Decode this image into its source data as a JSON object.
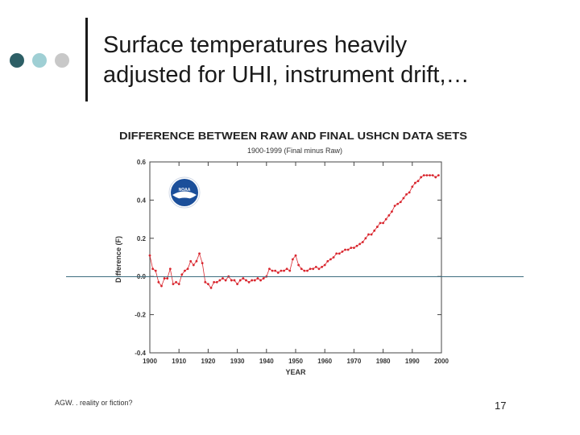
{
  "slide": {
    "title_line1": "Surface temperatures heavily",
    "title_line2": "adjusted for UHI, instrument drift,…",
    "footer": "AGW. .  reality or fiction?",
    "page_number": "17"
  },
  "logo": {
    "label": "NOAA",
    "color": "#1b4f9a"
  },
  "colors": {
    "data": "#d9262e",
    "reference": "#3d6d80"
  },
  "chart_data": {
    "type": "line",
    "title": "DIFFERENCE BETWEEN RAW AND FINAL USHCN DATA SETS",
    "subtitle": "1900-1999 (Final minus Raw)",
    "xlabel": "YEAR",
    "ylabel": "Difference (F)",
    "xlim": [
      1900,
      2000
    ],
    "ylim": [
      -0.4,
      0.6
    ],
    "xticks": [
      "1900",
      "1910",
      "1920",
      "1930",
      "1940",
      "1950",
      "1960",
      "1970",
      "1980",
      "1990",
      "2000"
    ],
    "yticks": [
      "0.6",
      "0.4",
      "0.2",
      "0.0",
      "-0.2",
      "-0.4"
    ],
    "series": [
      {
        "name": "Final minus Raw",
        "x": [
          1900,
          1901,
          1902,
          1903,
          1904,
          1905,
          1906,
          1907,
          1908,
          1909,
          1910,
          1911,
          1912,
          1913,
          1914,
          1915,
          1916,
          1917,
          1918,
          1919,
          1920,
          1921,
          1922,
          1923,
          1924,
          1925,
          1926,
          1927,
          1928,
          1929,
          1930,
          1931,
          1932,
          1933,
          1934,
          1935,
          1936,
          1937,
          1938,
          1939,
          1940,
          1941,
          1942,
          1943,
          1944,
          1945,
          1946,
          1947,
          1948,
          1949,
          1950,
          1951,
          1952,
          1953,
          1954,
          1955,
          1956,
          1957,
          1958,
          1959,
          1960,
          1961,
          1962,
          1963,
          1964,
          1965,
          1966,
          1967,
          1968,
          1969,
          1970,
          1971,
          1972,
          1973,
          1974,
          1975,
          1976,
          1977,
          1978,
          1979,
          1980,
          1981,
          1982,
          1983,
          1984,
          1985,
          1986,
          1987,
          1988,
          1989,
          1990,
          1991,
          1992,
          1993,
          1994,
          1995,
          1996,
          1997,
          1998,
          1999
        ],
        "values": [
          0.11,
          0.04,
          0.03,
          -0.03,
          -0.05,
          -0.01,
          -0.01,
          0.04,
          -0.04,
          -0.03,
          -0.04,
          0.01,
          0.03,
          0.04,
          0.08,
          0.06,
          0.08,
          0.12,
          0.07,
          -0.03,
          -0.04,
          -0.06,
          -0.03,
          -0.03,
          -0.02,
          -0.01,
          -0.02,
          0.0,
          -0.02,
          -0.02,
          -0.04,
          -0.02,
          -0.01,
          -0.02,
          -0.03,
          -0.02,
          -0.02,
          -0.01,
          -0.02,
          -0.01,
          0.0,
          0.04,
          0.03,
          0.03,
          0.02,
          0.03,
          0.03,
          0.04,
          0.03,
          0.09,
          0.11,
          0.06,
          0.04,
          0.03,
          0.03,
          0.04,
          0.04,
          0.05,
          0.04,
          0.05,
          0.06,
          0.08,
          0.09,
          0.1,
          0.12,
          0.12,
          0.13,
          0.14,
          0.14,
          0.15,
          0.15,
          0.16,
          0.17,
          0.18,
          0.2,
          0.22,
          0.22,
          0.24,
          0.26,
          0.28,
          0.28,
          0.3,
          0.32,
          0.34,
          0.37,
          0.38,
          0.39,
          0.41,
          0.43,
          0.44,
          0.47,
          0.49,
          0.5,
          0.52,
          0.53,
          0.53,
          0.53,
          0.53,
          0.52,
          0.53
        ]
      }
    ],
    "reference_line": {
      "y": 0.0
    }
  }
}
